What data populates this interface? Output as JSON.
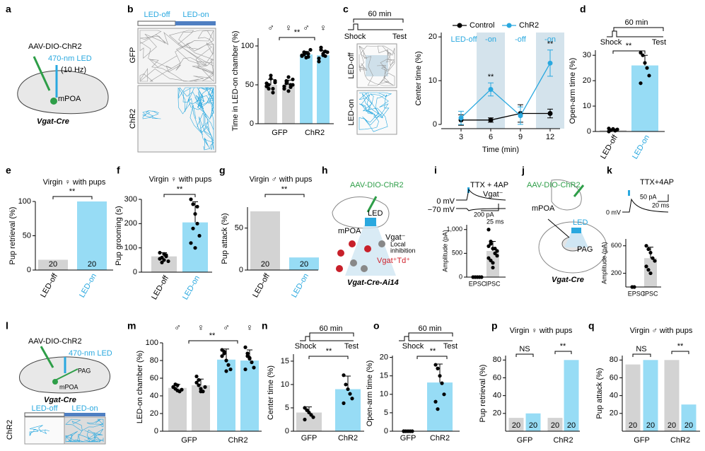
{
  "panel_labels": [
    "a",
    "b",
    "c",
    "d",
    "e",
    "f",
    "g",
    "h",
    "i",
    "j",
    "k",
    "l",
    "m",
    "n",
    "o",
    "p",
    "q"
  ],
  "diagrams": {
    "a": {
      "virus": "AAV-DIO-ChR2",
      "led": "470-nm LED",
      "frequency": "(10 Hz)",
      "region": "mPOA",
      "mouse": "Vgat-Cre"
    },
    "b": {
      "led_off": "LED-off",
      "led_on": "LED-on",
      "row1": "GFP",
      "row2": "ChR2"
    },
    "c": {
      "timer": "60 min",
      "shock": "Shock",
      "test": "Test",
      "row1": "LED-off",
      "row2": "LED-on"
    },
    "d": {
      "timer": "60 min",
      "shock": "Shock",
      "test": "Test"
    },
    "h": {
      "virus": "AAV-DIO-ChR2",
      "led": "LED",
      "region": "mPOA",
      "cell": "Vgat⁻",
      "local": "Local",
      "inhibition": "inhibition",
      "td": "Vgat⁺Td⁺",
      "mouse": "Vgat-Cre-Ai14"
    },
    "i": {
      "drug": "TTX + 4AP",
      "cell": "Vgat⁻",
      "v0": "0 mV",
      "v70": "−70 mV",
      "scale_y": "200 pA",
      "scale_x": "25 ms"
    },
    "j": {
      "virus": "AAV-DIO-ChR2",
      "region": "mPOA",
      "led": "LED",
      "target": "PAG",
      "mouse": "Vgat-Cre"
    },
    "k": {
      "drug": "TTX+4AP",
      "scale_y": "50 pA",
      "scale_x": "20 ms",
      "v0": "0 mV"
    },
    "l": {
      "virus": "AAV-DIO-ChR2",
      "led": "470-nm LED",
      "target": "PAG",
      "region": "mPOA",
      "mouse": "Vgat-Cre",
      "led_off": "LED-off",
      "led_on": "LED-on",
      "row": "ChR2"
    },
    "n": {
      "timer": "60 min",
      "shock": "Shock",
      "test": "Test"
    },
    "o": {
      "timer": "60 min",
      "shock": "Shock",
      "test": "Test"
    }
  },
  "chart_data": [
    {
      "type": "bar",
      "ylabel": "Time in LED-on chamber (%)",
      "ylim": [
        0,
        110
      ],
      "yticks": [
        0,
        50,
        100
      ],
      "categories": [
        "♂",
        "♀",
        "♂",
        "♀"
      ],
      "group_labels": [
        "GFP",
        "ChR2"
      ],
      "values": [
        50,
        50,
        89,
        88
      ],
      "errors": [
        7,
        6,
        4,
        6
      ],
      "points": [
        [
          52,
          45,
          58,
          40,
          55,
          48,
          50,
          62,
          45,
          53
        ],
        [
          48,
          55,
          42,
          50,
          57,
          45,
          52,
          60,
          47,
          50
        ],
        [
          88,
          92,
          85,
          90,
          95,
          87,
          89,
          91,
          86
        ],
        [
          84,
          95,
          90,
          87,
          92,
          80,
          98,
          88,
          93
        ]
      ],
      "colors": [
        "#d3d3d3",
        "#d3d3d3",
        "#97dcf5",
        "#97dcf5"
      ],
      "significance": [
        "**"
      ]
    },
    {
      "type": "line",
      "xlabel": "Time (min)",
      "ylabel": "Center time (%)",
      "x": [
        3,
        6,
        9,
        12
      ],
      "xlim": [
        1,
        13
      ],
      "xticks": [
        3,
        6,
        9,
        12
      ],
      "ylim": [
        0,
        21
      ],
      "yticks": [
        0,
        10,
        20
      ],
      "series": [
        {
          "name": "Control",
          "color": "#000000",
          "values": [
            1,
            1,
            2.5,
            2.5
          ],
          "errors": [
            1.2,
            0.5,
            2,
            1
          ]
        },
        {
          "name": "ChR2",
          "color": "#29a8df",
          "values": [
            1.5,
            8,
            2,
            14
          ],
          "errors": [
            1.5,
            1.5,
            2,
            3
          ]
        }
      ],
      "band_labels": [
        "LED-off",
        "-on",
        "-off",
        "-on"
      ],
      "band_color": "#d4e3ec",
      "significance": [
        "**",
        "**"
      ]
    },
    {
      "type": "bar",
      "ylabel": "Open-arm time (%)",
      "ylim": [
        0,
        32
      ],
      "yticks": [
        0,
        10,
        20,
        30
      ],
      "categories": [
        "LED-off",
        "LED-on"
      ],
      "category_colors": [
        "#000000",
        "#29a8df"
      ],
      "values": [
        0.5,
        26
      ],
      "errors": [
        0.5,
        4
      ],
      "points": [
        [
          0,
          0.5,
          1,
          0.3,
          0.8,
          1.2
        ],
        [
          31,
          30,
          27,
          25,
          22,
          19
        ]
      ],
      "colors": [
        "#d3d3d3",
        "#97dcf5"
      ],
      "significance": [
        "**"
      ]
    },
    {
      "type": "bar",
      "title": "Virgin ♀ with pups",
      "ylabel": "Pup retrieval (%)",
      "ylim": [
        0,
        100
      ],
      "yticks": [
        0,
        50,
        100
      ],
      "categories": [
        "LED-off",
        "LED-on"
      ],
      "category_colors": [
        "#000000",
        "#29a8df"
      ],
      "values": [
        15,
        100
      ],
      "n_labels": [
        20,
        20
      ],
      "colors": [
        "#d3d3d3",
        "#97dcf5"
      ],
      "significance": [
        "**"
      ]
    },
    {
      "type": "bar",
      "title": "Virgin ♀ with pups",
      "ylabel": "Pup grooming (s)",
      "ylim": [
        0,
        300
      ],
      "yticks": [
        0,
        100,
        200,
        300
      ],
      "categories": [
        "LED-off",
        "LED-on"
      ],
      "category_colors": [
        "#000000",
        "#29a8df"
      ],
      "values": [
        65,
        205
      ],
      "errors": [
        15,
        85
      ],
      "points": [
        [
          80,
          60,
          50,
          70,
          45,
          55,
          40,
          75,
          65
        ],
        [
          300,
          280,
          240,
          200,
          150,
          120,
          180,
          100,
          270
        ]
      ],
      "colors": [
        "#d3d3d3",
        "#97dcf5"
      ],
      "significance": [
        "**"
      ]
    },
    {
      "type": "bar",
      "title": "Virgin ♂ with pups",
      "ylabel": "Pup attack (%)",
      "ylim": [
        0,
        75
      ],
      "yticks": [
        0,
        50
      ],
      "categories": [
        "LED-off",
        "LED-on"
      ],
      "category_colors": [
        "#000000",
        "#29a8df"
      ],
      "values": [
        70,
        15
      ],
      "n_labels": [
        20,
        20
      ],
      "colors": [
        "#d3d3d3",
        "#97dcf5"
      ],
      "significance": [
        "**"
      ]
    },
    {
      "type": "bar",
      "ylabel": "Amplitude (pA)",
      "ylim": [
        0,
        1100
      ],
      "yticks": [
        0,
        500,
        {
          "value": 1000,
          "label": "1,000"
        }
      ],
      "categories": [
        "EPSC",
        "IPSC"
      ],
      "values": [
        5,
        550
      ],
      "errors": [
        0,
        200
      ],
      "points": [
        [
          0,
          0,
          0,
          0,
          0
        ],
        [
          1000,
          700,
          600,
          500,
          450,
          400,
          350,
          300,
          600,
          550,
          650,
          750,
          200
        ]
      ],
      "colors": [
        "#d3d3d3",
        "#d3d3d3"
      ]
    },
    {
      "type": "bar",
      "ylabel": "Amplitude (pA)",
      "ylim": [
        0,
        700
      ],
      "yticks": [
        200,
        600
      ],
      "categories": [
        "EPSC",
        "IPSC"
      ],
      "values": [
        0,
        420
      ],
      "errors": [
        0,
        160
      ],
      "points": [
        [
          0,
          0
        ],
        [
          600,
          550,
          500,
          420,
          380,
          300,
          250,
          200
        ]
      ],
      "colors": [
        "#d3d3d3",
        "#d3d3d3"
      ]
    },
    {
      "type": "bar",
      "ylabel": "LED-on chamber (%)",
      "ylim": [
        0,
        100
      ],
      "yticks": [
        0,
        20,
        40,
        60,
        80,
        100
      ],
      "categories": [
        "♂",
        "♀",
        "♂",
        "♀"
      ],
      "group_labels": [
        "GFP",
        "ChR2"
      ],
      "values": [
        49,
        52,
        81,
        80
      ],
      "errors": [
        4,
        7,
        12,
        12
      ],
      "points": [
        [
          50,
          48,
          52,
          45,
          47,
          50,
          53,
          46
        ],
        [
          55,
          52,
          48,
          45,
          50,
          62,
          58,
          45
        ],
        [
          92,
          88,
          80,
          75,
          70,
          85,
          90,
          68
        ],
        [
          95,
          88,
          82,
          78,
          72,
          70,
          85,
          83
        ]
      ],
      "colors": [
        "#d3d3d3",
        "#d3d3d3",
        "#97dcf5",
        "#97dcf5"
      ],
      "significance": [
        "**"
      ]
    },
    {
      "type": "bar",
      "ylabel": "Center time (%)",
      "ylim": [
        0,
        16.5
      ],
      "yticks": [
        0,
        5,
        10,
        15
      ],
      "categories": [
        "GFP",
        "ChR2"
      ],
      "values": [
        4,
        9
      ],
      "errors": [
        1.2,
        2.8
      ],
      "points": [
        [
          5,
          4.5,
          4,
          3.5,
          3,
          2.5
        ],
        [
          12,
          10,
          9,
          8,
          7,
          6
        ]
      ],
      "colors": [
        "#d3d3d3",
        "#97dcf5"
      ],
      "significance": [
        "**"
      ]
    },
    {
      "type": "bar",
      "ylabel": "Open-arm time (%)",
      "ylim": [
        0,
        20.5
      ],
      "yticks": [
        0,
        5,
        10,
        15,
        20
      ],
      "categories": [
        "GFP",
        "ChR2"
      ],
      "values": [
        0,
        13.2
      ],
      "errors": [
        0,
        5
      ],
      "points": [
        [
          0,
          0,
          0,
          0,
          0,
          0
        ],
        [
          18,
          17,
          15,
          13,
          10,
          8,
          6
        ]
      ],
      "colors": [
        "#d3d3d3",
        "#97dcf5"
      ],
      "significance": [
        "**"
      ]
    },
    {
      "type": "bar",
      "title": "Virgin ♀ with pups",
      "ylabel": "Pup retrieval (%)",
      "ylim": [
        0,
        85
      ],
      "yticks": [
        20,
        40,
        60,
        80
      ],
      "group_labels": [
        "GFP",
        "ChR2"
      ],
      "values": [
        15,
        20,
        15,
        80
      ],
      "n_labels": [
        20,
        20,
        20,
        20
      ],
      "colors": [
        "#d3d3d3",
        "#97dcf5",
        "#d3d3d3",
        "#97dcf5"
      ],
      "significance": [
        "NS",
        "**"
      ]
    },
    {
      "type": "bar",
      "title": "Virgin ♂ with pups",
      "ylabel": "Pup attack (%)",
      "ylim": [
        0,
        85
      ],
      "yticks": [
        20,
        40,
        60,
        80
      ],
      "group_labels": [
        "GFP",
        "ChR2"
      ],
      "values": [
        75,
        80,
        80,
        30
      ],
      "n_labels": [
        20,
        20,
        20,
        20
      ],
      "colors": [
        "#d3d3d3",
        "#97dcf5",
        "#d3d3d3",
        "#97dcf5"
      ],
      "significance": [
        "NS",
        "**"
      ]
    }
  ]
}
